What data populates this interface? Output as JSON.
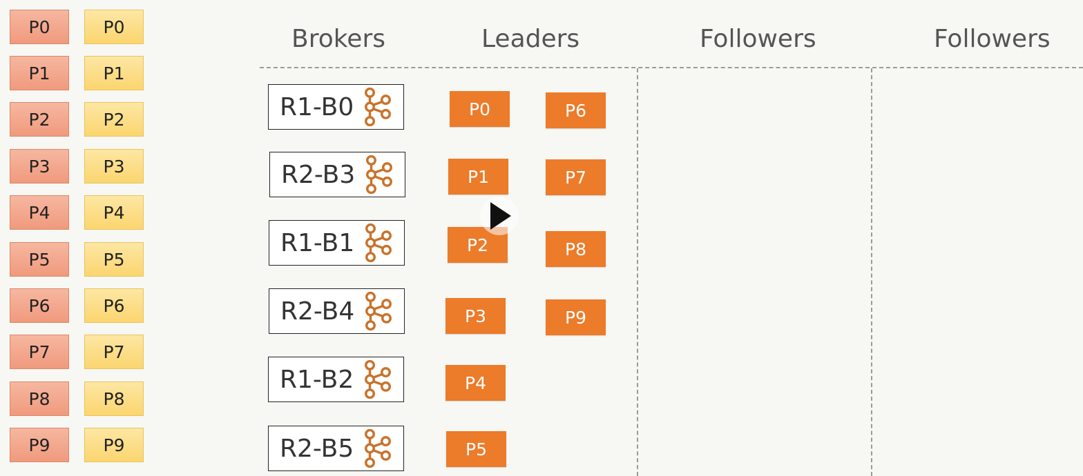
{
  "partitions_red": [
    "P0",
    "P1",
    "P2",
    "P3",
    "P4",
    "P5",
    "P6",
    "P7",
    "P8",
    "P9"
  ],
  "partitions_yellow": [
    "P0",
    "P1",
    "P2",
    "P3",
    "P4",
    "P5",
    "P6",
    "P7",
    "P8",
    "P9"
  ],
  "headers": {
    "brokers": "Brokers",
    "leaders": "Leaders",
    "followers_1": "Followers",
    "followers_2": "Followers"
  },
  "brokers": [
    "R1-B0",
    "R2-B3",
    "R1-B1",
    "R2-B4",
    "R1-B2",
    "R2-B5"
  ],
  "leaders_col1": [
    "P0",
    "P1",
    "P2",
    "P3",
    "P4",
    "P5"
  ],
  "leaders_col2": [
    "P6",
    "P7",
    "P8",
    "P9"
  ],
  "broker_icon": "kafka-logo-icon",
  "overlay_icon": "play-icon",
  "colors": {
    "leader": "#ec7b2a",
    "partition_red": "#f09a7d",
    "partition_yellow": "#fbd56f",
    "kafka_icon": "#c8732b"
  }
}
